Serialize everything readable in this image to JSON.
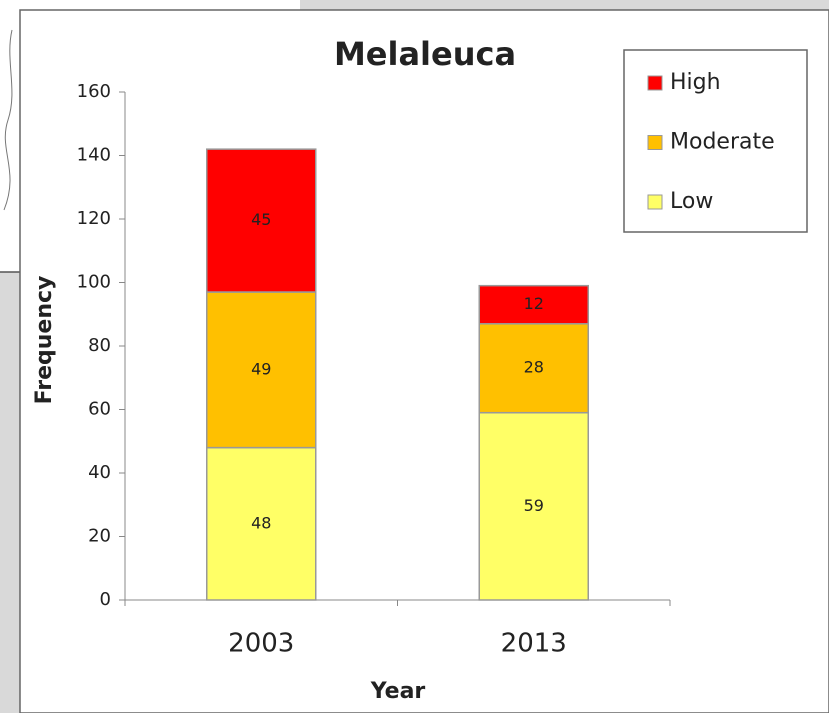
{
  "chart_data": {
    "type": "stacked-bar",
    "title": "Melaleuca",
    "x_label": "Year",
    "y_label": "Frequency",
    "categories": [
      "2003",
      "2013"
    ],
    "series": [
      {
        "name": "Low",
        "color": "#ffff66",
        "values": [
          48,
          59
        ]
      },
      {
        "name": "Moderate",
        "color": "#ffc000",
        "values": [
          49,
          28
        ]
      },
      {
        "name": "High",
        "color": "#ff0000",
        "values": [
          45,
          12
        ]
      }
    ],
    "ylim": [
      0,
      160
    ],
    "yticks": [
      0,
      20,
      40,
      60,
      80,
      100,
      120,
      140,
      160
    ],
    "legend": "top-right",
    "grid": false
  }
}
